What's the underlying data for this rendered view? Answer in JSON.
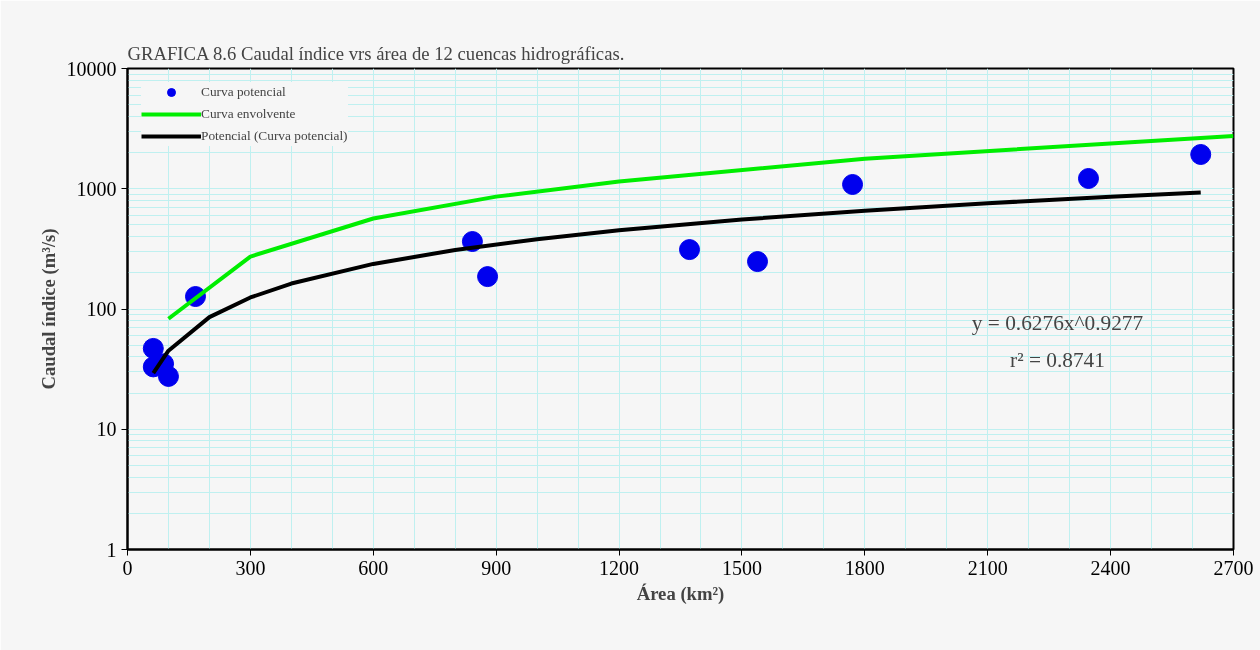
{
  "chart_data": {
    "type": "scatter",
    "title": "GRAFICA 8.6 Caudal índice vrs área de 12 cuencas hidrográficas.",
    "xlabel": "Área (km²)",
    "ylabel": "Caudal índice (m³/s)",
    "log": "y",
    "grid": true,
    "legend": "top left",
    "xlim": [
      0,
      2700
    ],
    "xticks": [
      0,
      300,
      600,
      900,
      1200,
      1500,
      1800,
      2100,
      2400,
      2700
    ],
    "ylim": [
      1,
      10000
    ],
    "yticks": [
      1,
      10,
      100,
      1000,
      10000
    ],
    "annotations": [
      "y = 0.6276x^0.9277",
      "r² = 0.8741"
    ],
    "series": [
      {
        "name": "Curva potencial",
        "marker": "circle",
        "color": "#0000ee",
        "x": [
          63,
          63,
          88,
          100,
          166,
          842,
          879,
          1372,
          1538,
          1770,
          2346,
          2620
        ],
        "values": [
          47,
          33,
          35,
          27.5,
          127,
          364,
          186,
          312,
          248,
          1085,
          1217,
          1927
        ]
      },
      {
        "name": "Curva envolvente",
        "type": "line",
        "marker": "none",
        "color": "#00ee00",
        "x": [
          100,
          300,
          600,
          900,
          1200,
          1800,
          2700
        ],
        "values": [
          83,
          273,
          566,
          860,
          1150,
          1780,
          2750
        ]
      },
      {
        "name": "Potencial (Curva potencial)",
        "type": "line",
        "marker": "none",
        "color": "#000000",
        "x": [
          63,
          100,
          200,
          300,
          400,
          600,
          800,
          1000,
          1200,
          1500,
          1800,
          2100,
          2400,
          2620
        ],
        "values": [
          29.3,
          45,
          85.6,
          124.7,
          162.8,
          237.1,
          309.6,
          380.8,
          451,
          555,
          657,
          758,
          858,
          931
        ]
      }
    ]
  }
}
